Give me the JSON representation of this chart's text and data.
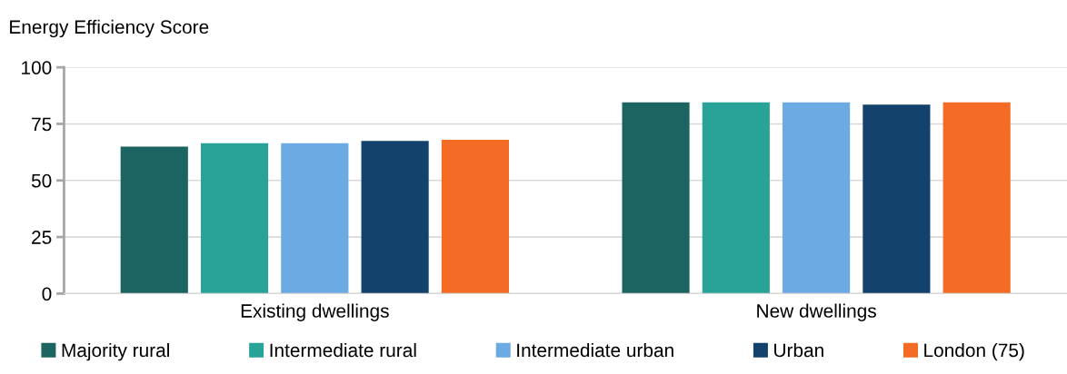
{
  "chart_data": {
    "type": "bar",
    "ylabel": "Energy Efficiency Score",
    "categories": [
      "Existing dwellings",
      "New dwellings"
    ],
    "series": [
      {
        "name": "Majority rural",
        "color": "#1b6461",
        "values": [
          65,
          84.5
        ]
      },
      {
        "name": "Intermediate rural",
        "color": "#29a398",
        "values": [
          66.5,
          84.5
        ]
      },
      {
        "name": "Intermediate urban",
        "color": "#6caae4",
        "values": [
          66.5,
          84.5
        ]
      },
      {
        "name": "Urban",
        "color": "#13426d",
        "values": [
          67.5,
          83.5
        ]
      },
      {
        "name": "London (75)",
        "color": "#f36b24",
        "values": [
          68,
          84.5
        ]
      }
    ],
    "ylim": [
      0,
      100
    ],
    "yticks": [
      0,
      25,
      50,
      75,
      100
    ],
    "grid": "y",
    "legend": "bottom"
  }
}
